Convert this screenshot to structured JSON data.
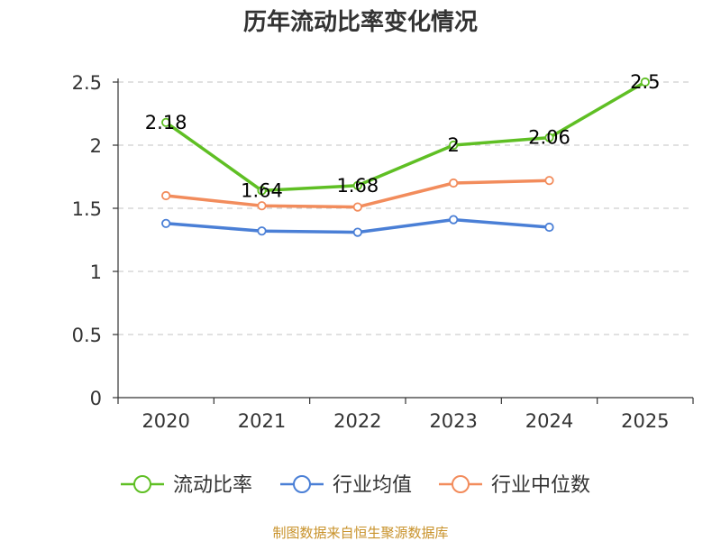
{
  "chart_data": {
    "type": "line",
    "title": "历年流动比率变化情况",
    "categories": [
      "2020",
      "2021",
      "2022",
      "2023",
      "2024",
      "2025"
    ],
    "y_ticks": [
      "0",
      "0.5",
      "1",
      "1.5",
      "2",
      "2.5"
    ],
    "ylim": [
      0,
      2.5
    ],
    "grid": true,
    "legend_position": "bottom",
    "series": [
      {
        "name": "流动比率",
        "color": "#5fbf24",
        "values": [
          2.18,
          1.64,
          1.68,
          2.0,
          2.06,
          2.5
        ],
        "labels": [
          "2.18",
          "1.64",
          "1.68",
          "2",
          "2.06",
          "2.5"
        ]
      },
      {
        "name": "行业均值",
        "color": "#4a7fd6",
        "values": [
          1.38,
          1.32,
          1.31,
          1.41,
          1.35,
          null
        ]
      },
      {
        "name": "行业中位数",
        "color": "#f28c5c",
        "values": [
          1.6,
          1.52,
          1.51,
          1.7,
          1.72,
          null
        ]
      }
    ]
  },
  "footer": {
    "source": "制图数据来自恒生聚源数据库",
    "source_color": "#c8922a"
  }
}
